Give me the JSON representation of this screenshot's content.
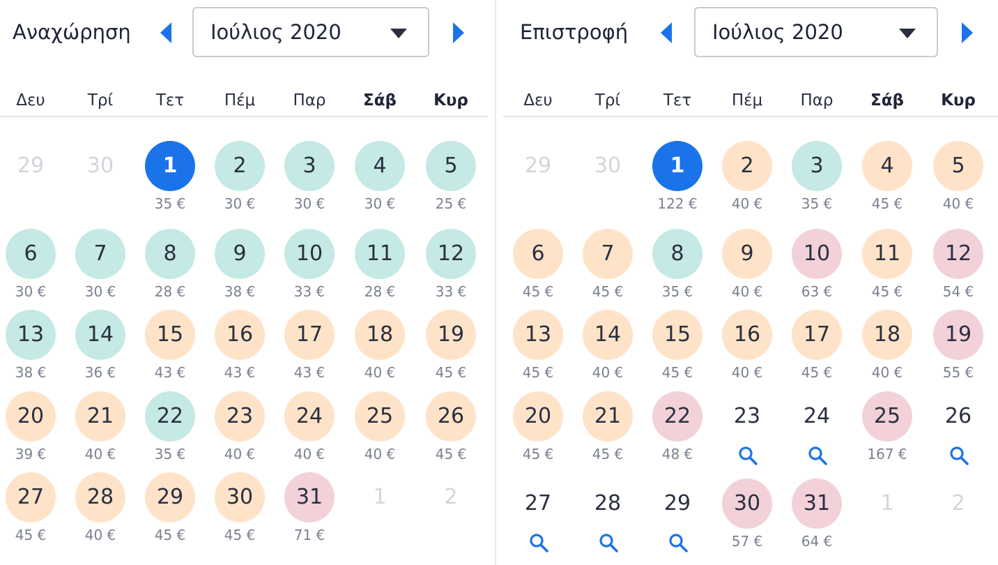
{
  "colors": {
    "accent": "#1a73e8",
    "green": "#c5e9e5",
    "orange": "#ffe3c8",
    "red": "#f2d1d9"
  },
  "weekdays": [
    "Δευ",
    "Τρί",
    "Τετ",
    "Πέμ",
    "Παρ",
    "Σάβ",
    "Κυρ"
  ],
  "departure": {
    "label": "Αναχώρηση",
    "month": "Ιούλιος 2020",
    "prev_icon": "chevron-left-icon",
    "next_icon": "chevron-right-icon",
    "days": [
      {
        "day": "29",
        "price": "",
        "status": "muted"
      },
      {
        "day": "30",
        "price": "",
        "status": "muted"
      },
      {
        "day": "1",
        "price": "35 €",
        "status": "selected"
      },
      {
        "day": "2",
        "price": "30 €",
        "status": "green"
      },
      {
        "day": "3",
        "price": "30 €",
        "status": "green"
      },
      {
        "day": "4",
        "price": "30 €",
        "status": "green"
      },
      {
        "day": "5",
        "price": "25 €",
        "status": "green"
      },
      {
        "day": "6",
        "price": "30 €",
        "status": "green"
      },
      {
        "day": "7",
        "price": "30 €",
        "status": "green"
      },
      {
        "day": "8",
        "price": "28 €",
        "status": "green"
      },
      {
        "day": "9",
        "price": "38 €",
        "status": "green"
      },
      {
        "day": "10",
        "price": "33 €",
        "status": "green"
      },
      {
        "day": "11",
        "price": "28 €",
        "status": "green"
      },
      {
        "day": "12",
        "price": "33 €",
        "status": "green"
      },
      {
        "day": "13",
        "price": "38 €",
        "status": "green"
      },
      {
        "day": "14",
        "price": "36 €",
        "status": "green"
      },
      {
        "day": "15",
        "price": "43 €",
        "status": "orange"
      },
      {
        "day": "16",
        "price": "43 €",
        "status": "orange"
      },
      {
        "day": "17",
        "price": "43 €",
        "status": "orange"
      },
      {
        "day": "18",
        "price": "40 €",
        "status": "orange"
      },
      {
        "day": "19",
        "price": "45 €",
        "status": "orange"
      },
      {
        "day": "20",
        "price": "39 €",
        "status": "orange"
      },
      {
        "day": "21",
        "price": "40 €",
        "status": "orange"
      },
      {
        "day": "22",
        "price": "35 €",
        "status": "green"
      },
      {
        "day": "23",
        "price": "40 €",
        "status": "orange"
      },
      {
        "day": "24",
        "price": "40 €",
        "status": "orange"
      },
      {
        "day": "25",
        "price": "40 €",
        "status": "orange"
      },
      {
        "day": "26",
        "price": "45 €",
        "status": "orange"
      },
      {
        "day": "27",
        "price": "45 €",
        "status": "orange"
      },
      {
        "day": "28",
        "price": "40 €",
        "status": "orange"
      },
      {
        "day": "29",
        "price": "45 €",
        "status": "orange"
      },
      {
        "day": "30",
        "price": "45 €",
        "status": "orange"
      },
      {
        "day": "31",
        "price": "71 €",
        "status": "red"
      },
      {
        "day": "1",
        "price": "",
        "status": "muted"
      },
      {
        "day": "2",
        "price": "",
        "status": "muted"
      }
    ]
  },
  "return": {
    "label": "Επιστροφή",
    "month": "Ιούλιος 2020",
    "prev_icon": "chevron-left-icon",
    "next_icon": "chevron-right-icon",
    "days": [
      {
        "day": "29",
        "price": "",
        "status": "muted"
      },
      {
        "day": "30",
        "price": "",
        "status": "muted"
      },
      {
        "day": "1",
        "price": "122 €",
        "status": "selected"
      },
      {
        "day": "2",
        "price": "40 €",
        "status": "orange"
      },
      {
        "day": "3",
        "price": "35 €",
        "status": "green"
      },
      {
        "day": "4",
        "price": "45 €",
        "status": "orange"
      },
      {
        "day": "5",
        "price": "40 €",
        "status": "orange"
      },
      {
        "day": "6",
        "price": "45 €",
        "status": "orange"
      },
      {
        "day": "7",
        "price": "45 €",
        "status": "orange"
      },
      {
        "day": "8",
        "price": "35 €",
        "status": "green"
      },
      {
        "day": "9",
        "price": "40 €",
        "status": "orange"
      },
      {
        "day": "10",
        "price": "63 €",
        "status": "red"
      },
      {
        "day": "11",
        "price": "45 €",
        "status": "orange"
      },
      {
        "day": "12",
        "price": "54 €",
        "status": "red"
      },
      {
        "day": "13",
        "price": "45 €",
        "status": "orange"
      },
      {
        "day": "14",
        "price": "40 €",
        "status": "orange"
      },
      {
        "day": "15",
        "price": "45 €",
        "status": "orange"
      },
      {
        "day": "16",
        "price": "40 €",
        "status": "orange"
      },
      {
        "day": "17",
        "price": "45 €",
        "status": "orange"
      },
      {
        "day": "18",
        "price": "40 €",
        "status": "orange"
      },
      {
        "day": "19",
        "price": "55 €",
        "status": "red"
      },
      {
        "day": "20",
        "price": "45 €",
        "status": "orange"
      },
      {
        "day": "21",
        "price": "45 €",
        "status": "orange"
      },
      {
        "day": "22",
        "price": "48 €",
        "status": "red"
      },
      {
        "day": "23",
        "price": "",
        "status": "search"
      },
      {
        "day": "24",
        "price": "",
        "status": "search"
      },
      {
        "day": "25",
        "price": "167 €",
        "status": "red"
      },
      {
        "day": "26",
        "price": "",
        "status": "search"
      },
      {
        "day": "27",
        "price": "",
        "status": "search"
      },
      {
        "day": "28",
        "price": "",
        "status": "search"
      },
      {
        "day": "29",
        "price": "",
        "status": "search"
      },
      {
        "day": "30",
        "price": "57 €",
        "status": "red"
      },
      {
        "day": "31",
        "price": "64 €",
        "status": "red"
      },
      {
        "day": "1",
        "price": "",
        "status": "muted"
      },
      {
        "day": "2",
        "price": "",
        "status": "muted"
      }
    ]
  }
}
